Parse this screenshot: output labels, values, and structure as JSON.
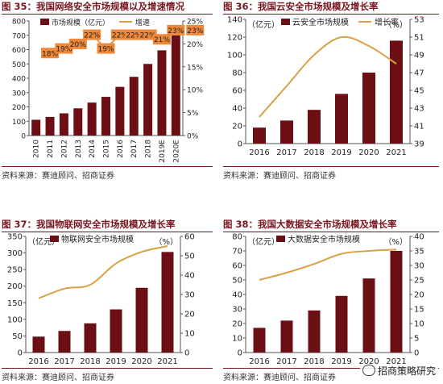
{
  "colors": {
    "bar": "#6b0f14",
    "line": "#d9a046",
    "title": "#7a1520",
    "label_bg": "#f0883a"
  },
  "watermark": "招商策略研究",
  "panels": [
    {
      "title": "图 35：我国网络安全市场规模以及增速情况",
      "source": "资料来源：赛迪顾问、招商证券",
      "legend": {
        "bar": "市场规模（亿元）",
        "line": "增速"
      }
    },
    {
      "title": "图 36：我国云安全市场规模及增长率",
      "source": "资料来源：赛迪顾问、招商证券",
      "legend": {
        "bar": "云安全市场规模",
        "line": "增长率"
      }
    },
    {
      "title": "图 37：我国物联网安全市场规模及增长率",
      "source": "资料来源：赛迪顾问、招商证券",
      "legend": {
        "bar": "物联网安全市场规模",
        "line": ""
      }
    },
    {
      "title": "图 38：我国大数据安全市场规模及增长率",
      "source": "资料来源：赛迪顾问、招商证券",
      "legend": {
        "bar": "大数据安全市场规模",
        "line": ""
      }
    }
  ],
  "chart_data": [
    {
      "type": "bar",
      "title": "图 35：我国网络安全市场规模以及增速情况",
      "categories": [
        "2010",
        "2011",
        "2012",
        "2013",
        "2014",
        "2015",
        "2016",
        "2017",
        "2018",
        "2019E",
        "2020E"
      ],
      "series": [
        {
          "name": "市场规模（亿元）",
          "type": "bar",
          "axis": "left",
          "values": [
            110,
            130,
            155,
            190,
            230,
            270,
            340,
            410,
            500,
            595,
            700
          ]
        },
        {
          "name": "增速",
          "type": "line",
          "axis": "right",
          "values": [
            null,
            18,
            19,
            20,
            22,
            19,
            22,
            22,
            22,
            21,
            23
          ]
        }
      ],
      "data_labels": [
        "",
        "18%",
        "19%",
        "20%",
        "22%",
        "19%",
        "22%",
        "22%",
        "22%",
        "21%",
        "23%"
      ],
      "extra_label": "23%",
      "ylim_left": [
        0,
        800
      ],
      "yticks_left": [
        0,
        100,
        200,
        300,
        400,
        500,
        600,
        700,
        800
      ],
      "ylim_right": [
        0,
        25
      ],
      "yticks_right": [
        "0%",
        "5%",
        "10%",
        "15%",
        "20%",
        "25%"
      ],
      "grid": false,
      "legend": "top"
    },
    {
      "type": "bar",
      "title": "图 36：我国云安全市场规模及增长率",
      "categories": [
        "2016",
        "2017",
        "2018",
        "2019",
        "2020",
        "2021"
      ],
      "series": [
        {
          "name": "云安全市场规模",
          "type": "bar",
          "axis": "left",
          "values": [
            18,
            26,
            38,
            56,
            80,
            116
          ]
        },
        {
          "name": "增长率",
          "type": "line",
          "axis": "right",
          "values": [
            42,
            45.5,
            49,
            51,
            50,
            48
          ]
        }
      ],
      "ylabel_left": "（亿元）",
      "ylabel_right": "（%）",
      "ylim_left": [
        0,
        140
      ],
      "yticks_left": [
        0,
        20,
        40,
        60,
        80,
        100,
        120,
        140
      ],
      "ylim_right": [
        39,
        53
      ],
      "yticks_right": [
        39,
        41,
        43,
        45,
        47,
        49,
        51,
        53
      ],
      "grid": false,
      "legend": "top"
    },
    {
      "type": "bar",
      "title": "图 37：我国物联网安全市场规模及增长率",
      "categories": [
        "2016",
        "2017",
        "2018",
        "2019",
        "2020",
        "2021"
      ],
      "series": [
        {
          "name": "物联网安全市场规模",
          "type": "bar",
          "axis": "left",
          "values": [
            48,
            65,
            88,
            130,
            195,
            303
          ]
        },
        {
          "type": "line",
          "axis": "right",
          "values": [
            28,
            33,
            35,
            46,
            52,
            55
          ]
        }
      ],
      "ylabel_left": "（亿元）",
      "ylabel_right": "（%）",
      "ylim_left": [
        0,
        350
      ],
      "yticks_left": [
        0,
        50,
        100,
        150,
        200,
        250,
        300,
        350
      ],
      "ylim_right": [
        0,
        60
      ],
      "yticks_right": [
        0,
        10,
        20,
        30,
        40,
        50,
        60
      ],
      "grid": false,
      "legend": "top"
    },
    {
      "type": "bar",
      "title": "图 38：我国大数据安全市场规模及增长率",
      "categories": [
        "2016",
        "2017",
        "2018",
        "2019",
        "2020",
        "2021"
      ],
      "series": [
        {
          "name": "大数据安全市场规模",
          "type": "bar",
          "axis": "left",
          "values": [
            17,
            22,
            29,
            39,
            51,
            70
          ]
        },
        {
          "type": "line",
          "axis": "right",
          "values": [
            25,
            27.5,
            30.5,
            34,
            35,
            35.5
          ]
        }
      ],
      "ylabel_left": "（亿元）",
      "ylabel_right": "（%）",
      "ylim_left": [
        0,
        80
      ],
      "yticks_left": [
        0,
        10,
        20,
        30,
        40,
        50,
        60,
        70,
        80
      ],
      "ylim_right": [
        0,
        40
      ],
      "yticks_right": [
        0,
        5,
        10,
        15,
        20,
        25,
        30,
        35,
        40
      ],
      "grid": false,
      "legend": "top"
    }
  ]
}
